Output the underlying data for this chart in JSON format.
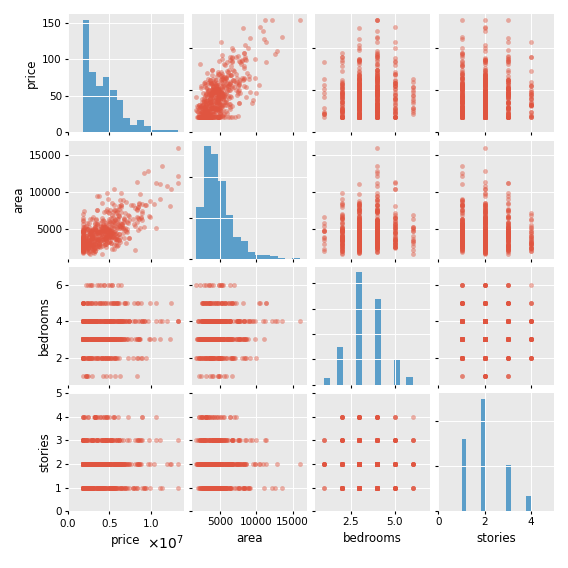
{
  "columns": [
    "price",
    "area",
    "bedrooms",
    "stories"
  ],
  "scatter_color": "#E05540",
  "hist_color": "#5B9EC9",
  "scatter_alpha": 0.45,
  "marker_size": 12,
  "figsize": [
    5.68,
    5.68
  ],
  "dpi": 100,
  "seed": 0,
  "n_samples": 545,
  "bg_color": "#E9E9E9",
  "label_fontsize": 8.5,
  "tick_fontsize": 7.5
}
